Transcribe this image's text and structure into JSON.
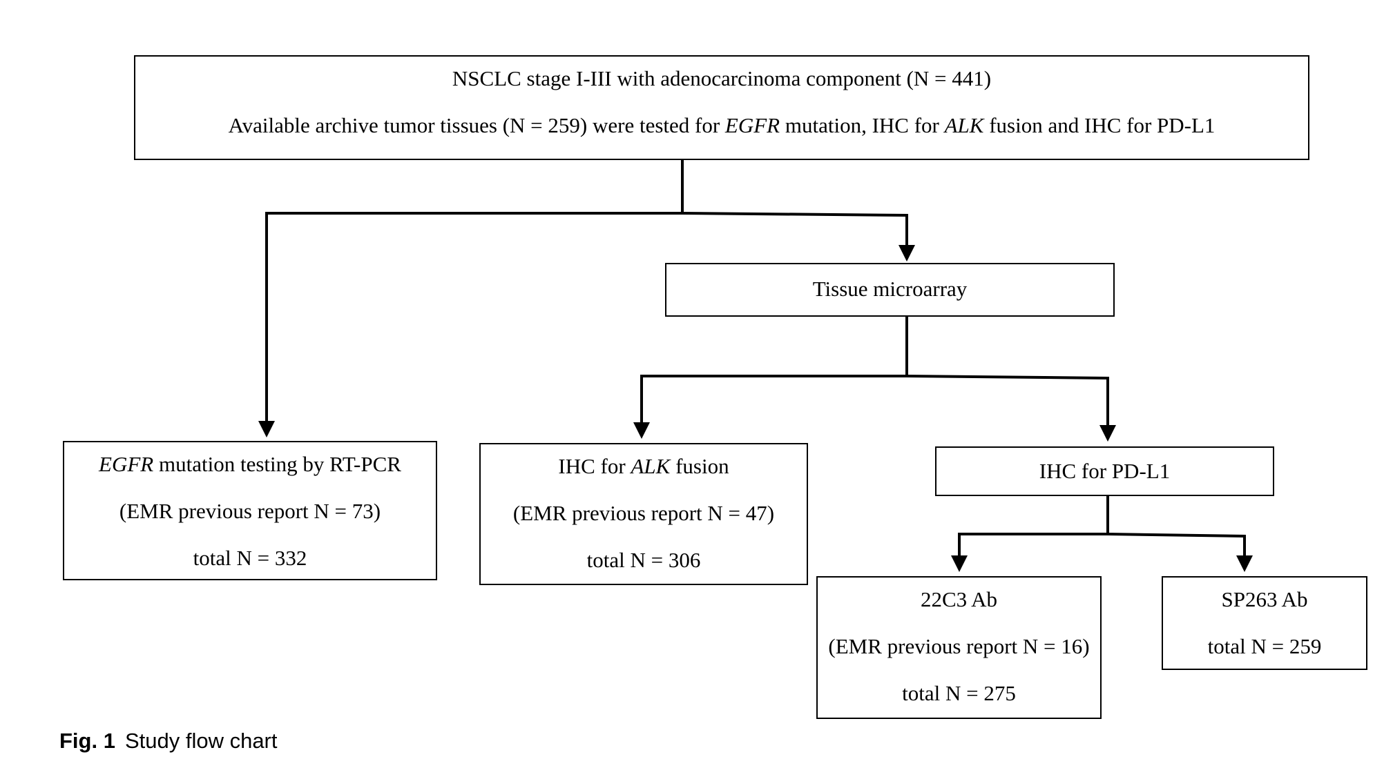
{
  "boxes": {
    "root": {
      "line1": "NSCLC stage I-III with adenocarcinoma component (N = 441)",
      "line2_a": "Available archive tumor tissues (N = 259) were tested for ",
      "line2_egfr": "EGFR",
      "line2_b": " mutation, IHC for ",
      "line2_alk": "ALK",
      "line2_c": " fusion and IHC for PD-L1"
    },
    "tma": {
      "label": "Tissue microarray"
    },
    "egfr": {
      "gene": "EGFR",
      "title_rest": " mutation testing by RT-PCR",
      "emr": "(EMR previous report N = 73)",
      "total": "total N = 332"
    },
    "alk": {
      "title_pre": "IHC for ",
      "gene": "ALK",
      "title_post": " fusion",
      "emr": "(EMR previous report N = 47)",
      "total": "total N = 306"
    },
    "pdl1": {
      "label": "IHC for PD-L1"
    },
    "ab22c3": {
      "title": "22C3 Ab",
      "emr": "(EMR previous report N = 16)",
      "total": "total N = 275"
    },
    "sp263": {
      "title": "SP263 Ab",
      "total": "total N = 259"
    }
  },
  "caption": {
    "label": "Fig. 1",
    "text": "Study flow chart"
  }
}
